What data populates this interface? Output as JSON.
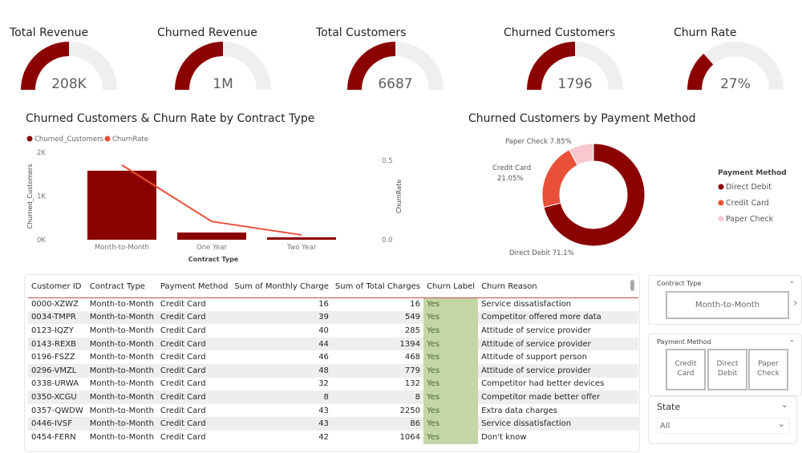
{
  "kpis": [
    {
      "title": "Total Revenue",
      "value": "208K",
      "fill": 0.5
    },
    {
      "title": "Churned Revenue",
      "value": "1M",
      "fill": 0.5
    },
    {
      "title": "Total Customers",
      "value": "6687",
      "fill": 0.5
    },
    {
      "title": "Churned Customers",
      "value": "1796",
      "fill": 0.5
    },
    {
      "title": "Churn Rate",
      "value": "27%",
      "fill": 0.27
    }
  ],
  "colors": {
    "dark_red": "#8b0000",
    "coral": "#e8503a",
    "pink": "#f9c7d0",
    "gauge_bg": "#f0eeee",
    "yes_bg": "#c5d6a6"
  },
  "chart_data": [
    {
      "type": "bar+line",
      "title": "Churned Customers & Churn Rate by Contract Type",
      "legend": [
        "Churned_Customers",
        "ChurnRate"
      ],
      "legend_position": "top-left",
      "categories": [
        "Month-to-Month",
        "One Year",
        "Two Year"
      ],
      "series": [
        {
          "name": "Churned_Customers",
          "type": "bar",
          "values": [
            1580,
            165,
            55
          ]
        },
        {
          "name": "ChurnRate",
          "type": "line",
          "values": [
            0.47,
            0.115,
            0.03
          ]
        }
      ],
      "xlabel": "Contract Type",
      "ylabel": "Churned_Customers",
      "y2label": "ChurnRate",
      "yticks": [
        "0K",
        "1K",
        "2K"
      ],
      "y2ticks": [
        "0.0",
        "0.5"
      ],
      "ylim": [
        0,
        2000
      ],
      "y2lim": [
        0,
        0.55
      ]
    },
    {
      "type": "pie",
      "title": "Churned Customers by Payment Method",
      "legend_title": "Payment Method",
      "legend_position": "right",
      "slices": [
        {
          "name": "Direct Debit",
          "value": 71.1,
          "label": "Direct Debit 71.1%"
        },
        {
          "name": "Credit Card",
          "value": 21.05,
          "label": "Credit Card\n21.05%"
        },
        {
          "name": "Paper Check",
          "value": 7.85,
          "label": "Paper Check 7.85%"
        }
      ]
    }
  ],
  "table": {
    "columns": [
      "Customer ID",
      "Contract Type",
      "Payment Method",
      "Sum of Monthly Charge",
      "Sum of Total Charges",
      "Churn Label",
      "Churn Reason"
    ],
    "rows": [
      [
        "0000-XZWZ",
        "Month-to-Month",
        "Credit Card",
        "16",
        "16",
        "Yes",
        "Service dissatisfaction"
      ],
      [
        "0034-TMPR",
        "Month-to-Month",
        "Credit Card",
        "39",
        "549",
        "Yes",
        "Competitor offered more data"
      ],
      [
        "0123-IQZY",
        "Month-to-Month",
        "Credit Card",
        "40",
        "285",
        "Yes",
        "Attitude of service provider"
      ],
      [
        "0143-REXB",
        "Month-to-Month",
        "Credit Card",
        "44",
        "1394",
        "Yes",
        "Attitude of service provider"
      ],
      [
        "0196-FSZZ",
        "Month-to-Month",
        "Credit Card",
        "46",
        "468",
        "Yes",
        "Attitude of support person"
      ],
      [
        "0296-VMZL",
        "Month-to-Month",
        "Credit Card",
        "48",
        "779",
        "Yes",
        "Attitude of service provider"
      ],
      [
        "0338-URWA",
        "Month-to-Month",
        "Credit Card",
        "32",
        "132",
        "Yes",
        "Competitor had better devices"
      ],
      [
        "0350-XCGU",
        "Month-to-Month",
        "Credit Card",
        "8",
        "8",
        "Yes",
        "Competitor made better offer"
      ],
      [
        "0357-QWDW",
        "Month-to-Month",
        "Credit Card",
        "43",
        "2250",
        "Yes",
        "Extra data charges"
      ],
      [
        "0446-IVSF",
        "Month-to-Month",
        "Credit Card",
        "43",
        "86",
        "Yes",
        "Service dissatisfaction"
      ],
      [
        "0454-FERN",
        "Month-to-Month",
        "Credit Card",
        "42",
        "1064",
        "Yes",
        "Don't know"
      ]
    ]
  },
  "slicers": {
    "contract": {
      "title": "Contract Type",
      "options": [
        "Month-to-Month"
      ]
    },
    "payment": {
      "title": "Payment Method",
      "options": [
        "Credit Card",
        "Direct Debit",
        "Paper Check"
      ]
    },
    "state": {
      "title": "State",
      "value": "All"
    }
  }
}
